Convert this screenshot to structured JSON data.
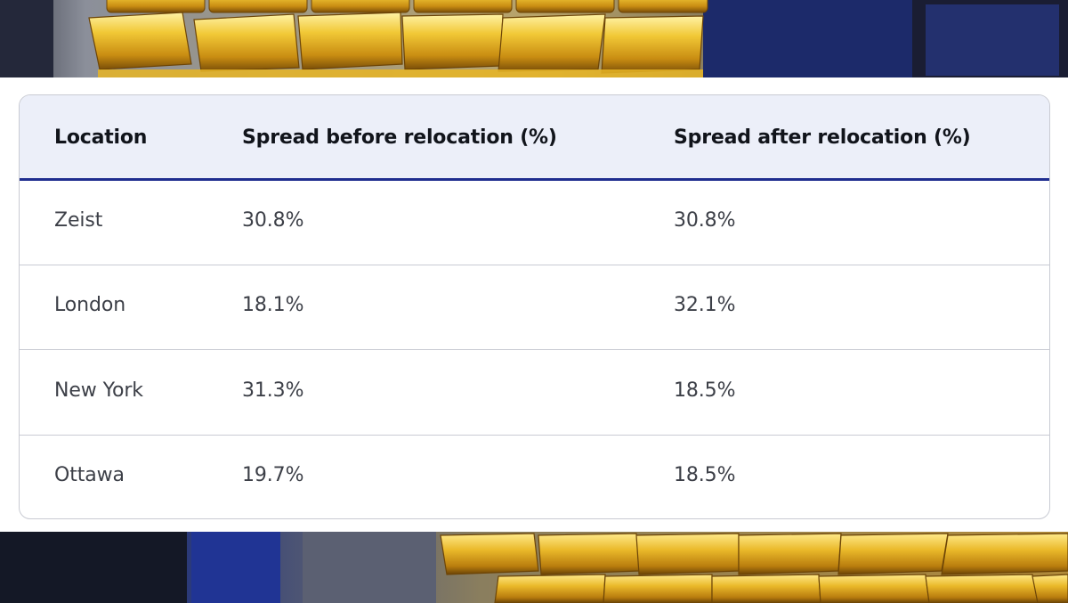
{
  "background": {
    "image": "gold-bars-photo",
    "colors": {
      "gold": "#e3b32a",
      "gold_dark": "#8a5d0c",
      "navy": "#1b2a6e"
    }
  },
  "table": {
    "header_color": "#eceff9",
    "accent_color": "#1f2d8f",
    "columns": [
      "Location",
      "Spread before relocation (%)",
      "Spread after relocation (%)"
    ],
    "rows": [
      {
        "location": "Zeist",
        "before": "30.8%",
        "after": "30.8%"
      },
      {
        "location": "London",
        "before": "18.1%",
        "after": "32.1%"
      },
      {
        "location": "New York",
        "before": "31.3%",
        "after": "18.5%"
      },
      {
        "location": "Ottawa",
        "before": "19.7%",
        "after": "18.5%"
      }
    ]
  }
}
